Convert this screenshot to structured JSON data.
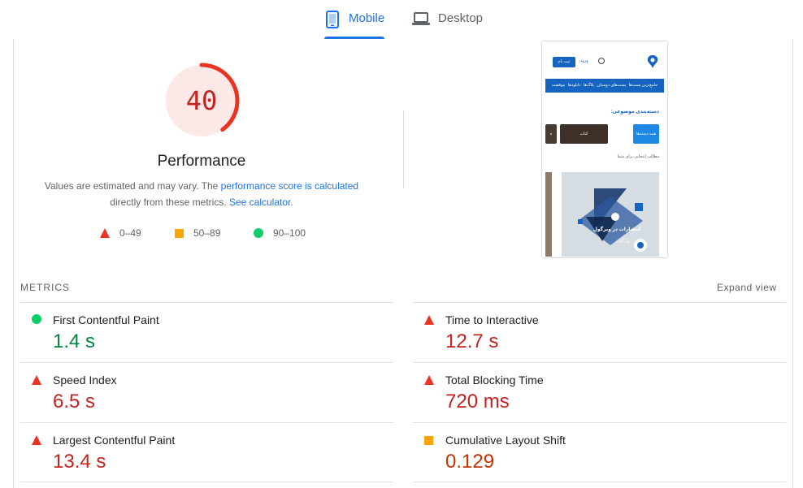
{
  "tabs": [
    {
      "label": "Mobile",
      "icon": "mobile-phone-icon",
      "active": true
    },
    {
      "label": "Desktop",
      "icon": "laptop-icon",
      "active": false
    }
  ],
  "gauge": {
    "score": "40",
    "score_fraction": 0.4,
    "color": "#eb3323",
    "title": "Performance"
  },
  "description": {
    "prefix": "Values are estimated and may vary. The ",
    "link1": "performance score is calculated",
    "middle": " directly from these metrics. ",
    "link2": "See calculator."
  },
  "legend": [
    {
      "range": "0–49",
      "shape": "triangle",
      "color": "#eb3323"
    },
    {
      "range": "50–89",
      "shape": "square",
      "color": "#ffa400"
    },
    {
      "range": "90–100",
      "shape": "circle",
      "color": "#0cce6b"
    }
  ],
  "thumbnail": {
    "signup_button": "ثبت نام",
    "login_link": "ورود",
    "nav_items": [
      "جامع‌ترین پست‌ها",
      "پست‌های دوستان",
      "بلاگ‌ها",
      "دانلودها",
      "موفقیت"
    ],
    "section_title": "دسته‌بندی موضوعی:",
    "card1": "همه دسته‌ها",
    "card2": "کتاب",
    "card3": "ه",
    "sub_title": "مطالب انتخابی برای شما",
    "hero_text": "انتشارات در ویرگول",
    "hero_author": "ویرگول"
  },
  "metrics_section": {
    "title": "METRICS",
    "expand": "Expand view"
  },
  "metrics": [
    {
      "label": "First Contentful Paint",
      "value": "1.4 s",
      "rating": "pass"
    },
    {
      "label": "Time to Interactive",
      "value": "12.7 s",
      "rating": "fail"
    },
    {
      "label": "Speed Index",
      "value": "6.5 s",
      "rating": "fail"
    },
    {
      "label": "Total Blocking Time",
      "value": "720 ms",
      "rating": "fail"
    },
    {
      "label": "Largest Contentful Paint",
      "value": "13.4 s",
      "rating": "fail"
    },
    {
      "label": "Cumulative Layout Shift",
      "value": "0.129",
      "rating": "average"
    }
  ],
  "colors": {
    "accent": "#1a73e8",
    "fail": "#eb3323",
    "average": "#ffa400",
    "pass": "#0cce6b"
  }
}
